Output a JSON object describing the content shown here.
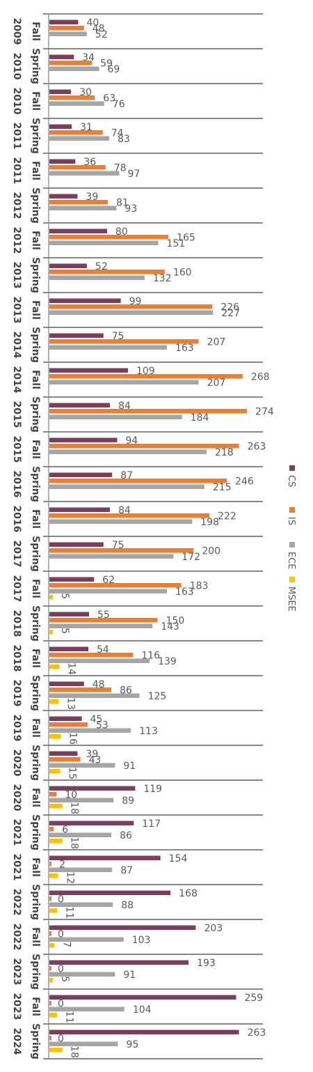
{
  "chart_data": {
    "type": "bar",
    "orientation": "horizontal",
    "categories": [
      "Fall 2009",
      "Spring 2010",
      "Fall 2010",
      "Spring 2011",
      "Fall 2011",
      "Spring 2012",
      "Fall 2012",
      "Spring 2013",
      "Fall 2013",
      "Spring 2014",
      "Fall 2014",
      "Spring 2015",
      "Fall 2015",
      "Spring 2016",
      "Fall 2016",
      "Spring 2017",
      "Fall 2017",
      "Spring 2018",
      "Fall 2018",
      "Spring 2019",
      "Fall 2019",
      "Spring 2020",
      "Fall 2020",
      "Spring 2021",
      "Fall 2021",
      "Spring 2022",
      "Fall 2022",
      "Spring 2023",
      "Fall 2023",
      "Spring 2024"
    ],
    "category_parts": [
      [
        "Fall",
        "2009"
      ],
      [
        "Spring",
        "2010"
      ],
      [
        "Fall",
        "2010"
      ],
      [
        "Spring",
        "2011"
      ],
      [
        "Fall",
        "2011"
      ],
      [
        "Spring",
        "2012"
      ],
      [
        "Fall",
        "2012"
      ],
      [
        "Spring",
        "2013"
      ],
      [
        "Fall",
        "2013"
      ],
      [
        "Spring",
        "2014"
      ],
      [
        "Fall",
        "2014"
      ],
      [
        "Spring",
        "2015"
      ],
      [
        "Fall",
        "2015"
      ],
      [
        "Spring",
        "2016"
      ],
      [
        "Fall",
        "2016"
      ],
      [
        "Spring",
        "2017"
      ],
      [
        "Fall",
        "2017"
      ],
      [
        "Spring",
        "2018"
      ],
      [
        "Fall",
        "2018"
      ],
      [
        "Spring",
        "2019"
      ],
      [
        "Fall",
        "2019"
      ],
      [
        "Spring",
        "2020"
      ],
      [
        "Fall",
        "2020"
      ],
      [
        "Spring",
        "2021"
      ],
      [
        "Fall",
        "2021"
      ],
      [
        "Spring",
        "2022"
      ],
      [
        "Fall",
        "2022"
      ],
      [
        "Spring",
        "2023"
      ],
      [
        "Fall",
        "2023"
      ],
      [
        "Spring",
        "2024"
      ]
    ],
    "series": [
      {
        "name": "CS",
        "color": "#7b3f5e",
        "values": [
          40,
          34,
          30,
          31,
          36,
          39,
          80,
          52,
          99,
          75,
          109,
          84,
          94,
          87,
          84,
          75,
          62,
          55,
          54,
          48,
          45,
          39,
          119,
          117,
          154,
          168,
          203,
          193,
          259,
          263
        ]
      },
      {
        "name": "IS",
        "color": "#ed7d31",
        "values": [
          48,
          59,
          63,
          74,
          78,
          81,
          165,
          160,
          226,
          207,
          268,
          274,
          263,
          246,
          222,
          200,
          183,
          150,
          116,
          86,
          53,
          43,
          10,
          6,
          2,
          0,
          0,
          0,
          0,
          0
        ]
      },
      {
        "name": "ECE",
        "color": "#a5a5a5",
        "values": [
          52,
          69,
          76,
          83,
          97,
          93,
          151,
          132,
          227,
          163,
          207,
          184,
          218,
          215,
          198,
          172,
          163,
          143,
          139,
          125,
          113,
          91,
          89,
          86,
          87,
          88,
          103,
          91,
          104,
          95
        ]
      },
      {
        "name": "MSEE",
        "color": "#ffc000",
        "values": [
          null,
          null,
          null,
          null,
          null,
          null,
          null,
          null,
          null,
          null,
          null,
          null,
          null,
          null,
          null,
          null,
          5,
          5,
          14,
          13,
          16,
          15,
          18,
          18,
          12,
          11,
          7,
          5,
          11,
          18
        ]
      }
    ],
    "title": "",
    "xlabel": "",
    "ylabel": "",
    "xlim": [
      0,
      300
    ],
    "grid": false,
    "legend": "right"
  }
}
